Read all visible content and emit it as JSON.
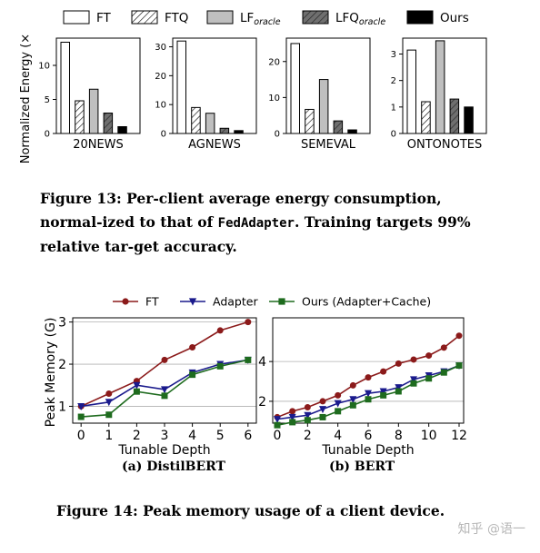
{
  "figure13": {
    "legend": [
      {
        "label": "FT",
        "sub": "",
        "fill": "#ffffff",
        "hatch": false
      },
      {
        "label": "FTQ",
        "sub": "",
        "fill": "#ffffff",
        "hatch": true
      },
      {
        "label": "LF",
        "sub": "oracle",
        "fill": "#bfbfbf",
        "hatch": false
      },
      {
        "label": "LFQ",
        "sub": "oracle",
        "fill": "#6f6f6f",
        "hatch": true
      },
      {
        "label": "Ours",
        "sub": "",
        "fill": "#000000",
        "hatch": false
      }
    ],
    "caption_parts": [
      "Figure 13: Per-client average energy consumption, normal-ized to that of ",
      "FedAdapter",
      ". Training targets 99% relative tar-get accuracy."
    ]
  },
  "figure14": {
    "caption": "Figure 14: Peak memory usage of a client device.",
    "legend": [
      {
        "label": "FT",
        "color": "#8b1a1a",
        "marker": "circle"
      },
      {
        "label": "Adapter",
        "color": "#1a1a8c",
        "marker": "triangle-down"
      },
      {
        "label": "Ours (Adapter+Cache)",
        "color": "#1e6b1e",
        "marker": "square"
      }
    ],
    "sub_captions": [
      "(a) DistilBERT",
      "(b) BERT"
    ]
  },
  "watermark": "知乎 @语一",
  "chart_data": [
    {
      "type": "bar",
      "ylabel": "Normalized Energy (×)",
      "series_names": [
        "FT",
        "FTQ",
        "LForacle",
        "LFQoracle",
        "Ours"
      ],
      "panels": [
        {
          "xlabel": "20NEWS",
          "ylim": [
            0,
            14
          ],
          "yticks": [
            0,
            5,
            10
          ],
          "values": [
            13.4,
            4.8,
            6.5,
            3.0,
            1.0
          ]
        },
        {
          "xlabel": "AGNEWS",
          "ylim": [
            0,
            33
          ],
          "yticks": [
            0,
            10,
            20,
            30
          ],
          "values": [
            32.0,
            9.0,
            7.0,
            1.8,
            1.0
          ]
        },
        {
          "xlabel": "SEMEVAL",
          "ylim": [
            0,
            26.5
          ],
          "yticks": [
            0,
            10,
            20
          ],
          "values": [
            25.0,
            6.7,
            15.0,
            3.5,
            1.0
          ]
        },
        {
          "xlabel": "ONTONOTES",
          "ylim": [
            0,
            3.6
          ],
          "yticks": [
            0,
            1,
            2,
            3
          ],
          "values": [
            3.15,
            1.2,
            3.5,
            1.3,
            1.0
          ]
        }
      ]
    },
    {
      "type": "line",
      "ylabel": "Peak Memory (G)",
      "panels": [
        {
          "xlabel": "Tunable Depth",
          "xlim": [
            -0.3,
            6.3
          ],
          "ylim": [
            0.6,
            3.1
          ],
          "xticks": [
            0,
            1,
            2,
            3,
            4,
            5,
            6
          ],
          "yticks": [
            1,
            2,
            3
          ],
          "x": [
            0,
            1,
            2,
            3,
            4,
            5,
            6
          ],
          "series": [
            {
              "name": "FT",
              "values": [
                1.0,
                1.3,
                1.6,
                2.1,
                2.4,
                2.8,
                3.0
              ]
            },
            {
              "name": "Adapter",
              "values": [
                1.0,
                1.1,
                1.5,
                1.4,
                1.8,
                2.0,
                2.1
              ]
            },
            {
              "name": "Ours (Adapter+Cache)",
              "values": [
                0.75,
                0.8,
                1.35,
                1.25,
                1.75,
                1.95,
                2.1
              ]
            }
          ]
        },
        {
          "xlabel": "Tunable Depth",
          "xlim": [
            -0.3,
            12.3
          ],
          "ylim": [
            0.9,
            6.2
          ],
          "xticks": [
            0,
            2,
            4,
            6,
            8,
            10,
            12
          ],
          "yticks": [
            2,
            4
          ],
          "x": [
            0,
            1,
            2,
            3,
            4,
            5,
            6,
            7,
            8,
            9,
            10,
            11,
            12
          ],
          "series": [
            {
              "name": "FT",
              "values": [
                1.2,
                1.5,
                1.7,
                2.0,
                2.3,
                2.8,
                3.2,
                3.5,
                3.9,
                4.1,
                4.3,
                4.7,
                5.3
              ]
            },
            {
              "name": "Adapter",
              "values": [
                1.1,
                1.2,
                1.3,
                1.6,
                1.9,
                2.1,
                2.4,
                2.5,
                2.7,
                3.1,
                3.3,
                3.5,
                3.8
              ]
            },
            {
              "name": "Ours (Adapter+Cache)",
              "values": [
                0.8,
                0.95,
                1.05,
                1.2,
                1.5,
                1.8,
                2.1,
                2.3,
                2.5,
                2.9,
                3.15,
                3.45,
                3.8
              ]
            }
          ]
        }
      ]
    }
  ]
}
